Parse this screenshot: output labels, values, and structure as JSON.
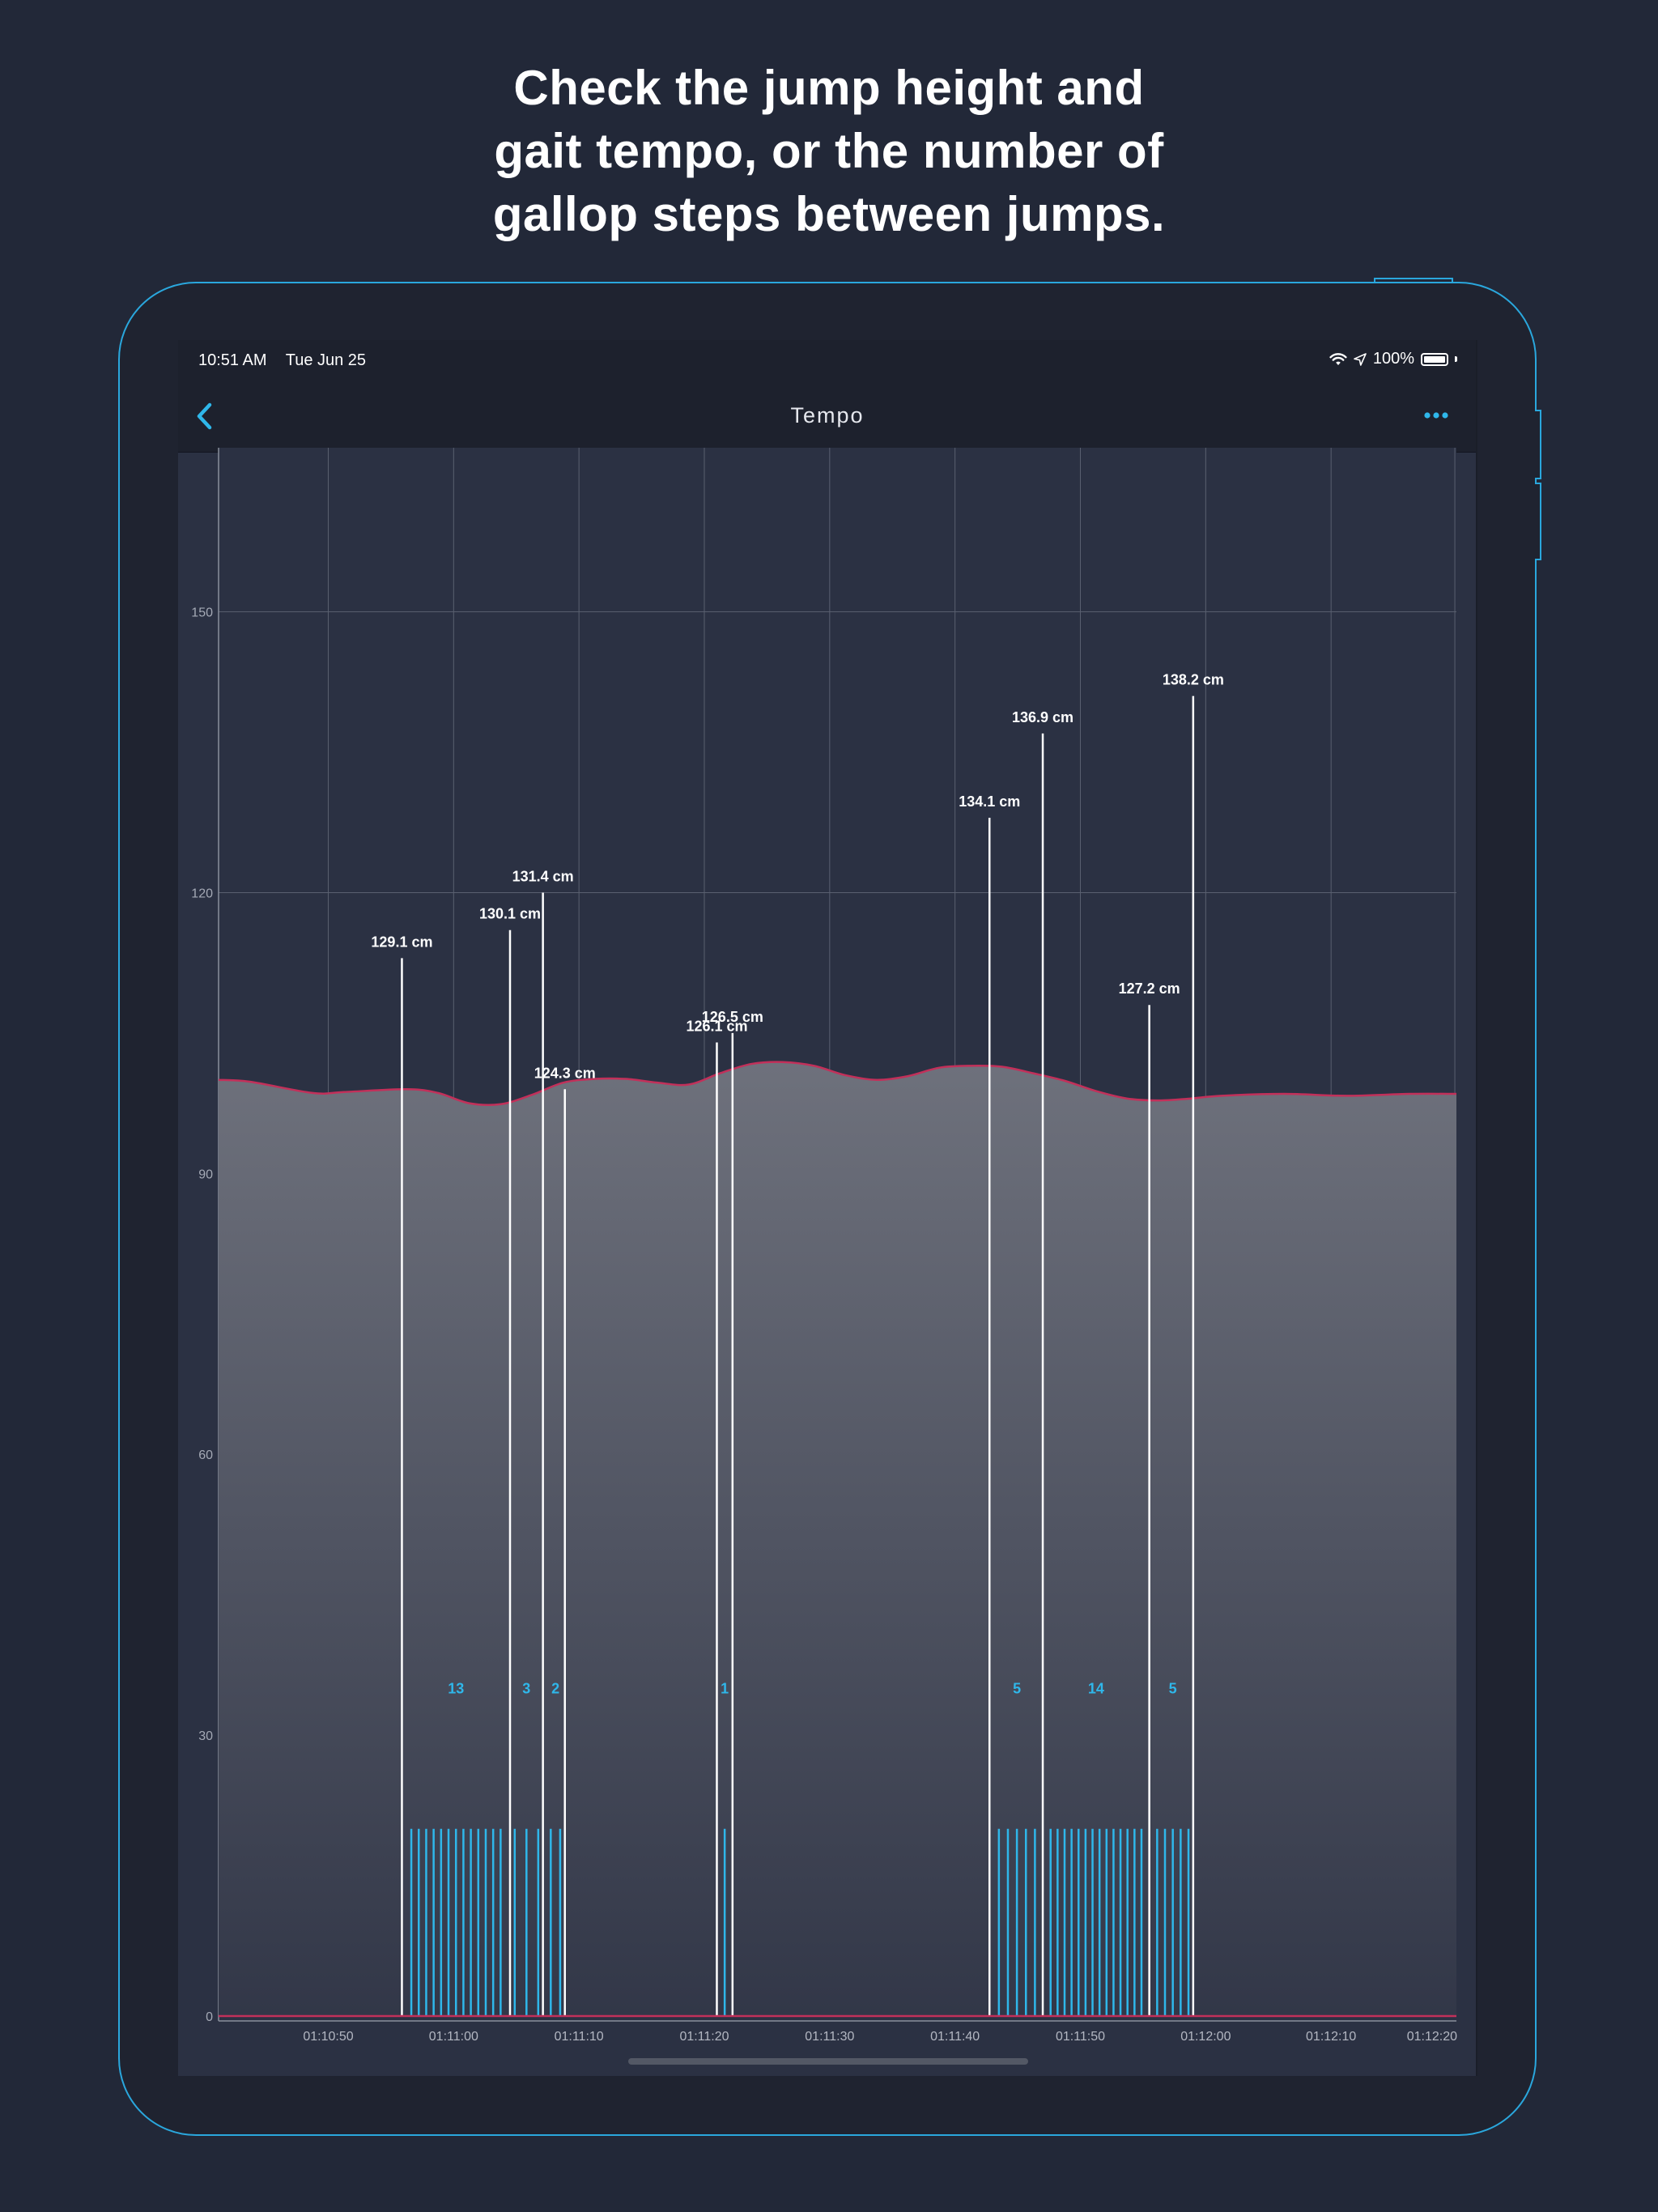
{
  "headline": {
    "line1": "Check the jump height and",
    "line2": "gait tempo, or the number of",
    "line3": "gallop steps between jumps."
  },
  "status_bar": {
    "time": "10:51 AM",
    "date": "Tue Jun 25",
    "battery": "100%"
  },
  "nav": {
    "title": "Tempo",
    "back_icon": "chevron-left-icon",
    "more_icon": "ellipsis-icon"
  },
  "colors": {
    "accent": "#2fb7ea",
    "curve": "#c2305a",
    "area_top": "#6e717c",
    "area_bottom": "#323748",
    "grid": "#5a6070",
    "jump_line": "#ffffff"
  },
  "chart_data": {
    "type": "line",
    "title": "Tempo",
    "xlabel": "",
    "ylabel": "",
    "xlim": [
      46,
      125
    ],
    "ylim": [
      0,
      167
    ],
    "yticks": [
      0,
      30,
      60,
      90,
      120,
      150
    ],
    "xticks": [
      {
        "t": 53,
        "label": "01:10:50"
      },
      {
        "t": 61,
        "label": "01:11:00"
      },
      {
        "t": 69,
        "label": "01:11:10"
      },
      {
        "t": 77,
        "label": "01:11:20"
      },
      {
        "t": 85,
        "label": "01:11:30"
      },
      {
        "t": 93,
        "label": "01:11:40"
      },
      {
        "t": 101,
        "label": "01:11:50"
      },
      {
        "t": 109,
        "label": "01:12:00"
      },
      {
        "t": 117,
        "label": "01:12:10"
      },
      {
        "t": 124.9,
        "label": "01:12:20"
      }
    ],
    "vertical_grid_t": [
      53,
      61,
      69,
      77,
      85,
      93,
      101,
      109,
      117,
      124.9
    ],
    "series": [
      {
        "name": "tempo",
        "x": [
          46,
          48,
          52,
          54,
          58,
          60,
          62,
          64,
          66,
          68,
          70,
          72,
          74,
          76,
          78,
          80,
          82,
          84,
          86,
          88,
          90,
          92,
          94,
          96,
          98,
          100,
          102,
          104,
          106,
          108,
          110,
          114,
          118,
          122,
          125
        ],
        "y": [
          100,
          99.8,
          98.6,
          98.7,
          99.0,
          98.6,
          97.5,
          97.4,
          98.4,
          99.7,
          100.1,
          100.1,
          99.7,
          99.5,
          100.7,
          101.7,
          101.9,
          101.5,
          100.5,
          100.0,
          100.4,
          101.3,
          101.5,
          101.4,
          100.7,
          99.9,
          98.8,
          98.0,
          97.8,
          98.0,
          98.3,
          98.5,
          98.3,
          98.5,
          98.5
        ]
      }
    ],
    "jumps": [
      {
        "t": 57.7,
        "height": 113,
        "label": "129.1 cm"
      },
      {
        "t": 64.6,
        "height": 116,
        "label": "130.1 cm"
      },
      {
        "t": 66.7,
        "height": 120,
        "label": "131.4 cm"
      },
      {
        "t": 68.1,
        "height": 99,
        "label": "124.3 cm"
      },
      {
        "t": 77.8,
        "height": 104,
        "label": "126.1 cm"
      },
      {
        "t": 78.8,
        "height": 105,
        "label": "126.5 cm"
      },
      {
        "t": 95.2,
        "height": 128,
        "label": "134.1 cm"
      },
      {
        "t": 98.6,
        "height": 137,
        "label": "136.9 cm"
      },
      {
        "t": 105.4,
        "height": 108,
        "label": "127.2 cm"
      },
      {
        "t": 108.2,
        "height": 141,
        "label": "138.2 cm"
      }
    ],
    "step_groups": [
      {
        "count": 13,
        "t_start": 58.3,
        "t_end": 64.0,
        "label": "13"
      },
      {
        "count": 3,
        "t_start": 64.9,
        "t_end": 66.4,
        "label": "3"
      },
      {
        "count": 2,
        "t_start": 67.2,
        "t_end": 67.8,
        "label": "2"
      },
      {
        "count": 1,
        "t_start": 78.3,
        "t_end": 78.3,
        "label": "1"
      },
      {
        "count": 5,
        "t_start": 95.8,
        "t_end": 98.1,
        "label": "5"
      },
      {
        "count": 14,
        "t_start": 99.1,
        "t_end": 104.9,
        "label": "14"
      },
      {
        "count": 5,
        "t_start": 105.9,
        "t_end": 107.9,
        "label": "5"
      }
    ],
    "step_marker_height": 20,
    "step_label_value": 35
  }
}
